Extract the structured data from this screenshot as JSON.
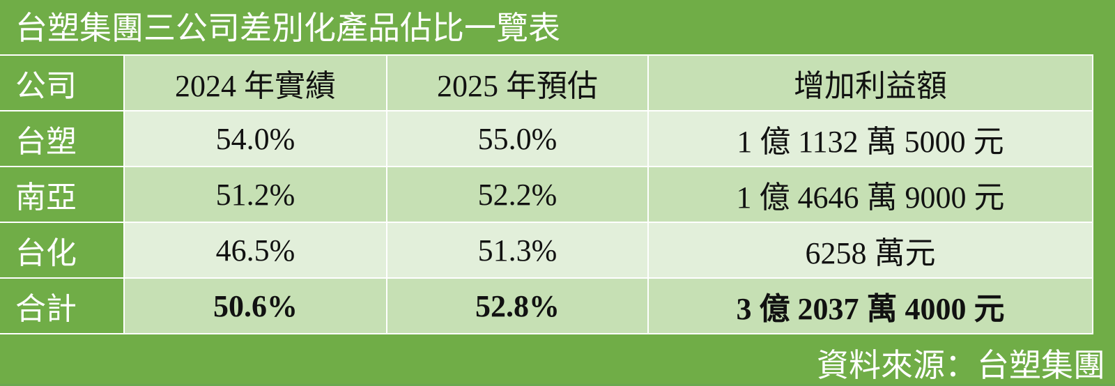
{
  "title": "台塑集團三公司差別化產品佔比一覽表",
  "table": {
    "header": [
      "公司",
      "2024 年實績",
      "2025 年預估",
      "增加利益額"
    ],
    "rows": [
      [
        "台塑",
        "54.0%",
        "55.0%",
        "1 億 1132 萬 5000 元"
      ],
      [
        "南亞",
        "51.2%",
        "52.2%",
        "1 億 4646 萬 9000 元"
      ],
      [
        "台化",
        "46.5%",
        "51.3%",
        "6258 萬元"
      ],
      [
        "合計",
        "50.6%",
        "52.8%",
        "3 億 2037 萬 4000 元"
      ]
    ]
  },
  "source": "資料來源：台塑集團"
}
